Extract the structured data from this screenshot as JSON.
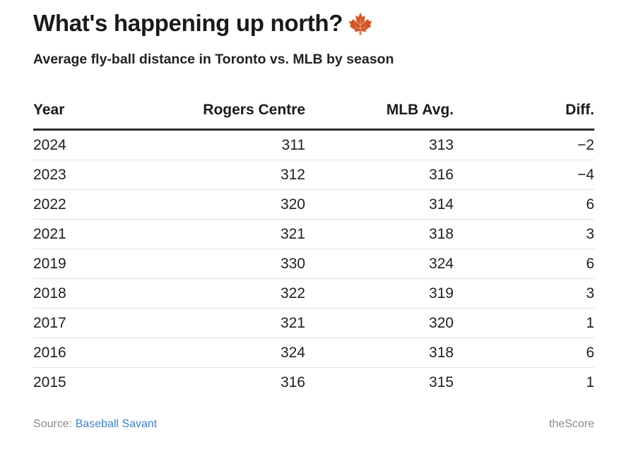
{
  "title": "What's happening up north?",
  "title_icon": "maple-leaf-icon",
  "subtitle": "Average fly-ball distance in Toronto vs. MLB by season",
  "colors": {
    "leaf": "#d4542a",
    "header_rule": "#2b2b2b",
    "link": "#3b82c4",
    "footer_text": "#8a8a8a"
  },
  "chart_data": {
    "type": "table",
    "columns": [
      "Year",
      "Rogers Centre",
      "MLB Avg.",
      "Diff."
    ],
    "rows": [
      [
        "2024",
        "311",
        "313",
        "−2"
      ],
      [
        "2023",
        "312",
        "316",
        "−4"
      ],
      [
        "2022",
        "320",
        "314",
        "6"
      ],
      [
        "2021",
        "321",
        "318",
        "3"
      ],
      [
        "2019",
        "330",
        "324",
        "6"
      ],
      [
        "2018",
        "322",
        "319",
        "3"
      ],
      [
        "2017",
        "321",
        "320",
        "1"
      ],
      [
        "2016",
        "324",
        "318",
        "6"
      ],
      [
        "2015",
        "316",
        "315",
        "1"
      ]
    ]
  },
  "footer": {
    "source_prefix": "Source:",
    "source_link": "Baseball Savant",
    "credit": "theScore"
  }
}
